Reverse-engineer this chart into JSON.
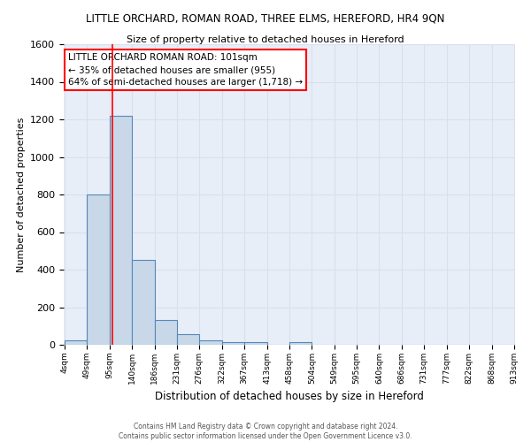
{
  "title": "LITTLE ORCHARD, ROMAN ROAD, THREE ELMS, HEREFORD, HR4 9QN",
  "subtitle": "Size of property relative to detached houses in Hereford",
  "xlabel": "Distribution of detached houses by size in Hereford",
  "ylabel": "Number of detached properties",
  "footer_line1": "Contains HM Land Registry data © Crown copyright and database right 2024.",
  "footer_line2": "Contains public sector information licensed under the Open Government Licence v3.0.",
  "bar_edges": [
    4,
    49,
    95,
    140,
    186,
    231,
    276,
    322,
    367,
    413,
    458,
    504,
    549,
    595,
    640,
    686,
    731,
    777,
    822,
    868,
    913
  ],
  "bar_heights": [
    25,
    800,
    1220,
    450,
    130,
    55,
    25,
    15,
    13,
    0,
    13,
    0,
    0,
    0,
    0,
    0,
    0,
    0,
    0,
    0,
    0
  ],
  "bar_color": "#c8d8e8",
  "bar_edge_color": "#5588bb",
  "bar_linewidth": 0.8,
  "red_line_x": 101,
  "ylim": [
    0,
    1600
  ],
  "yticks": [
    0,
    200,
    400,
    600,
    800,
    1000,
    1200,
    1400,
    1600
  ],
  "annotation_text": "LITTLE ORCHARD ROMAN ROAD: 101sqm\n← 35% of detached houses are smaller (955)\n64% of semi-detached houses are larger (1,718) →",
  "annotation_box_color": "white",
  "annotation_box_edge_color": "red",
  "grid_color": "#d8e0ec",
  "plot_background": "#e8eef8"
}
